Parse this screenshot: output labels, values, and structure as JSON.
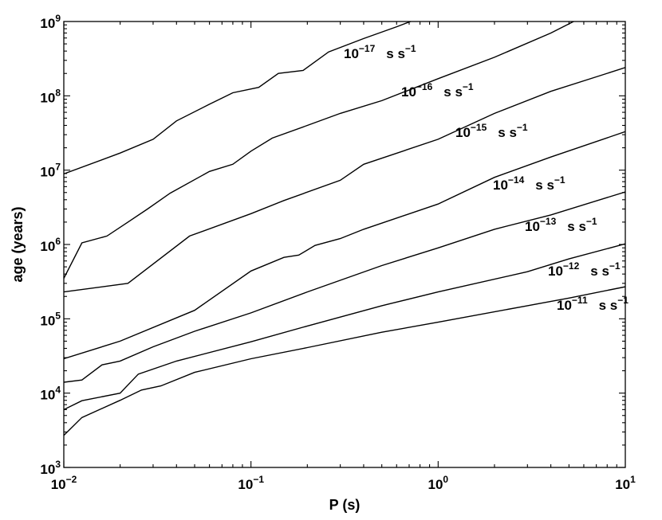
{
  "chart_data": {
    "type": "line",
    "xlabel": "P (s)",
    "ylabel": "age (years)",
    "xscale": "log",
    "yscale": "log",
    "xlim": [
      0.01,
      10
    ],
    "ylim": [
      1000,
      1000000000
    ],
    "x_ticks": [
      {
        "value": 0.01,
        "base": "10",
        "exp": "−2"
      },
      {
        "value": 0.1,
        "base": "10",
        "exp": "−1"
      },
      {
        "value": 1,
        "base": "10",
        "exp": "0"
      },
      {
        "value": 10,
        "base": "10",
        "exp": "1"
      }
    ],
    "y_ticks": [
      {
        "value": 1000,
        "base": "10",
        "exp": "3"
      },
      {
        "value": 10000,
        "base": "10",
        "exp": "4"
      },
      {
        "value": 100000,
        "base": "10",
        "exp": "5"
      },
      {
        "value": 1000000,
        "base": "10",
        "exp": "6"
      },
      {
        "value": 10000000,
        "base": "10",
        "exp": "7"
      },
      {
        "value": 100000000,
        "base": "10",
        "exp": "8"
      },
      {
        "value": 1000000000,
        "base": "10",
        "exp": "9"
      }
    ],
    "grid": false,
    "series": [
      {
        "label": {
          "base": "10",
          "exp": "−17",
          "unit": "s s",
          "unit_exp": "−1"
        },
        "points": [
          [
            0.01,
            8900000.0
          ],
          [
            0.02,
            17000000.0
          ],
          [
            0.03,
            26000000.0
          ],
          [
            0.04,
            46000000.0
          ],
          [
            0.06,
            77000000.0
          ],
          [
            0.08,
            110000000.0
          ],
          [
            0.11,
            130000000.0
          ],
          [
            0.14,
            200000000.0
          ],
          [
            0.19,
            220000000.0
          ],
          [
            0.26,
            390000000.0
          ],
          [
            0.4,
            590000000.0
          ],
          [
            0.6,
            850000000.0
          ],
          [
            0.75,
            1050000000.0
          ]
        ]
      },
      {
        "label": {
          "base": "10",
          "exp": "−16",
          "unit": "s s",
          "unit_exp": "−1"
        },
        "points": [
          [
            0.01,
            350000.0
          ],
          [
            0.0125,
            1050000.0
          ],
          [
            0.017,
            1300000.0
          ],
          [
            0.022,
            2000000.0
          ],
          [
            0.028,
            3000000.0
          ],
          [
            0.037,
            4900000.0
          ],
          [
            0.06,
            9600000.0
          ],
          [
            0.08,
            12000000.0
          ],
          [
            0.1,
            18000000.0
          ],
          [
            0.13,
            27000000.0
          ],
          [
            0.2,
            40000000.0
          ],
          [
            0.3,
            58000000.0
          ],
          [
            0.5,
            86000000.0
          ],
          [
            1,
            170000000.0
          ],
          [
            2,
            330000000.0
          ],
          [
            4,
            700000000.0
          ],
          [
            5.5,
            1050000000.0
          ]
        ]
      },
      {
        "label": {
          "base": "10",
          "exp": "−15",
          "unit": "s s",
          "unit_exp": "−1"
        },
        "points": [
          [
            0.01,
            230000.0
          ],
          [
            0.022,
            300000.0
          ],
          [
            0.047,
            1300000.0
          ],
          [
            0.1,
            2600000.0
          ],
          [
            0.15,
            3900000.0
          ],
          [
            0.3,
            7300000.0
          ],
          [
            0.4,
            12000000.0
          ],
          [
            1,
            26000000.0
          ],
          [
            2,
            58000000.0
          ],
          [
            4,
            115000000.0
          ],
          [
            7,
            180000000.0
          ],
          [
            10,
            240000000.0
          ]
        ]
      },
      {
        "label": {
          "base": "10",
          "exp": "−14",
          "unit": "s s",
          "unit_exp": "−1"
        },
        "points": [
          [
            0.01,
            29000.0
          ],
          [
            0.02,
            50000.0
          ],
          [
            0.05,
            130000.0
          ],
          [
            0.1,
            440000.0
          ],
          [
            0.15,
            670000.0
          ],
          [
            0.18,
            720000.0
          ],
          [
            0.22,
            970000.0
          ],
          [
            0.3,
            1200000.0
          ],
          [
            0.4,
            1600000.0
          ],
          [
            1,
            3500000.0
          ],
          [
            2,
            8000000.0
          ],
          [
            4,
            15000000.0
          ],
          [
            10,
            33000000.0
          ]
        ]
      },
      {
        "label": {
          "base": "10",
          "exp": "−13",
          "unit": "s s",
          "unit_exp": "−1"
        },
        "points": [
          [
            0.01,
            14000.0
          ],
          [
            0.0125,
            15000.0
          ],
          [
            0.016,
            24000.0
          ],
          [
            0.02,
            27000.0
          ],
          [
            0.03,
            42000.0
          ],
          [
            0.05,
            68000.0
          ],
          [
            0.1,
            120000.0
          ],
          [
            0.2,
            230000.0
          ],
          [
            0.5,
            520000.0
          ],
          [
            1,
            900000.0
          ],
          [
            2,
            1600000.0
          ],
          [
            4,
            2500000.0
          ],
          [
            10,
            5100000.0
          ]
        ]
      },
      {
        "label": {
          "base": "10",
          "exp": "−12",
          "unit": "s s",
          "unit_exp": "−1"
        },
        "points": [
          [
            0.01,
            6000.0
          ],
          [
            0.0125,
            7900.0
          ],
          [
            0.02,
            10000.0
          ],
          [
            0.025,
            18000.0
          ],
          [
            0.04,
            27000.0
          ],
          [
            0.1,
            49000.0
          ],
          [
            0.2,
            80000.0
          ],
          [
            0.5,
            150000.0
          ],
          [
            1,
            230000.0
          ],
          [
            3,
            430000.0
          ],
          [
            5,
            640000.0
          ],
          [
            10,
            1020000.0
          ]
        ]
      },
      {
        "label": {
          "base": "10",
          "exp": "−11",
          "unit": "s s",
          "unit_exp": "−1"
        },
        "points": [
          [
            0.01,
            2700.0
          ],
          [
            0.0125,
            4700.0
          ],
          [
            0.02,
            8000.0
          ],
          [
            0.026,
            11000.0
          ],
          [
            0.033,
            12500.0
          ],
          [
            0.05,
            19000.0
          ],
          [
            0.1,
            29000.0
          ],
          [
            0.2,
            41000.0
          ],
          [
            0.5,
            66000.0
          ],
          [
            1,
            90000.0
          ],
          [
            3,
            150000.0
          ],
          [
            5,
            190000.0
          ],
          [
            10,
            270000.0
          ]
        ]
      }
    ]
  }
}
